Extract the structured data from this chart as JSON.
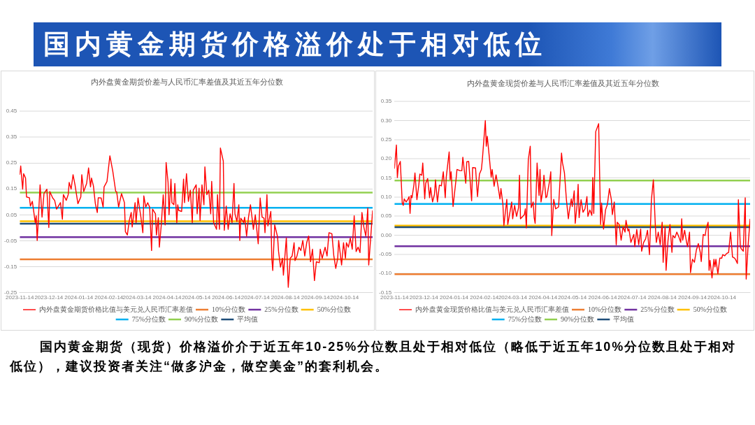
{
  "chart_data": [
    {
      "type": "other",
      "title": "国内黄金期货价格溢价处于相对低位"
    },
    {
      "type": "line",
      "title": "内外盘黄金期货价差与人民币汇率差值及其近五年分位数",
      "xlim": [
        "2023-11-14",
        "2024-11-12"
      ],
      "xticks": [
        "2023-11-14",
        "2023-12-14",
        "2024-01-14",
        "2024-02-14",
        "2024-03-14",
        "2024-04-14",
        "2024-05-14",
        "2024-06-14",
        "2024-07-14",
        "2024-08-14",
        "2024-09-14",
        "2024-10-14"
      ],
      "ylim": [
        -0.25,
        0.45
      ],
      "yticks": [
        -0.25,
        -0.15,
        -0.05,
        0.05,
        0.15,
        0.25,
        0.35,
        0.45
      ],
      "grid": "y",
      "legend": "bottom",
      "line_style": "solid",
      "series": [
        {
          "name": "内外盘黄金期货价格比值与美元兑人民币汇率差值",
          "color": "#ff0000",
          "x": [
            "2023-11-14",
            "2023-11-15",
            "2023-11-17",
            "2023-11-18",
            "2023-11-20",
            "2023-11-21",
            "2023-11-24",
            "2023-11-25",
            "2023-11-27",
            "2023-11-30",
            "2023-12-01",
            "2023-12-02",
            "2023-12-03",
            "2023-12-05",
            "2023-12-07",
            "2023-12-09",
            "2023-12-12",
            "2023-12-14",
            "2023-12-15",
            "2023-12-18",
            "2023-12-20",
            "2023-12-22",
            "2023-12-26",
            "2023-12-28",
            "2023-12-29",
            "2024-01-01",
            "2024-01-03",
            "2024-01-04",
            "2024-01-06",
            "2024-01-08",
            "2024-01-10",
            "2024-01-13",
            "2024-01-16",
            "2024-01-17",
            "2024-01-19",
            "2024-01-22",
            "2024-01-24",
            "2024-01-26",
            "2024-01-27",
            "2024-01-29",
            "2024-01-31",
            "2024-02-02",
            "2024-02-03",
            "2024-02-06",
            "2024-02-08",
            "2024-02-09",
            "2024-02-12",
            "2024-02-15",
            "2024-02-18",
            "2024-02-21",
            "2024-02-22",
            "2024-02-24",
            "2024-02-27",
            "2024-03-01",
            "2024-03-02",
            "2024-03-04",
            "2024-03-06",
            "2024-03-08",
            "2024-03-09",
            "2024-03-12",
            "2024-03-13",
            "2024-03-15",
            "2024-03-18",
            "2024-03-20",
            "2024-03-21",
            "2024-03-23",
            "2024-03-25",
            "2024-03-27",
            "2024-03-29",
            "2024-03-30",
            "2024-04-02",
            "2024-04-03",
            "2024-04-05",
            "2024-04-06",
            "2024-04-08",
            "2024-04-10",
            "2024-04-12",
            "2024-04-13",
            "2024-04-15",
            "2024-04-16",
            "2024-04-18",
            "2024-04-19",
            "2024-04-21",
            "2024-04-22",
            "2024-04-24",
            "2024-04-25",
            "2024-04-26",
            "2024-04-29",
            "2024-05-01",
            "2024-05-02",
            "2024-05-04",
            "2024-05-06",
            "2024-05-08",
            "2024-05-10",
            "2024-05-11",
            "2024-05-14",
            "2024-05-15",
            "2024-05-17",
            "2024-05-18",
            "2024-05-20",
            "2024-05-22",
            "2024-05-23",
            "2024-05-25",
            "2024-05-27",
            "2024-05-29",
            "2024-05-30",
            "2024-06-01",
            "2024-06-04",
            "2024-06-05",
            "2024-06-07",
            "2024-06-08",
            "2024-06-11",
            "2024-06-12",
            "2024-06-14",
            "2024-06-16",
            "2024-06-18",
            "2024-06-20",
            "2024-06-22",
            "2024-06-23",
            "2024-06-25",
            "2024-06-27",
            "2024-06-28",
            "2024-06-29",
            "2024-07-02",
            "2024-07-03",
            "2024-07-05",
            "2024-07-07",
            "2024-07-09",
            "2024-07-11",
            "2024-07-12",
            "2024-07-14",
            "2024-07-17",
            "2024-07-19",
            "2024-07-21",
            "2024-07-23",
            "2024-07-24",
            "2024-07-26",
            "2024-07-27",
            "2024-07-30",
            "2024-07-31",
            "2024-08-01",
            "2024-08-03",
            "2024-08-06",
            "2024-08-07",
            "2024-08-09",
            "2024-08-11",
            "2024-08-12",
            "2024-08-15",
            "2024-08-17",
            "2024-08-19",
            "2024-08-21",
            "2024-08-23",
            "2024-08-24",
            "2024-08-26",
            "2024-08-28",
            "2024-08-30",
            "2024-09-01",
            "2024-09-03",
            "2024-09-05",
            "2024-09-07",
            "2024-09-09",
            "2024-09-11",
            "2024-09-13",
            "2024-09-15",
            "2024-09-18",
            "2024-09-19",
            "2024-09-21",
            "2024-09-24",
            "2024-09-26",
            "2024-09-28",
            "2024-10-01",
            "2024-10-03",
            "2024-10-05",
            "2024-10-07",
            "2024-10-08",
            "2024-10-11",
            "2024-10-13",
            "2024-10-15",
            "2024-10-16",
            "2024-10-18",
            "2024-10-20",
            "2024-10-22",
            "2024-10-24",
            "2024-10-26",
            "2024-10-28",
            "2024-10-30",
            "2024-11-01",
            "2024-11-03",
            "2024-11-05",
            "2024-11-07",
            "2024-11-08",
            "2024-11-10",
            "2024-11-12"
          ],
          "values": [
            0.205,
            0.239,
            0.149,
            0.209,
            0.192,
            0.119,
            0.116,
            0.084,
            0.102,
            0.02,
            0.046,
            -0.049,
            0.02,
            0.166,
            0.041,
            0.132,
            0.149,
            0.001,
            0.14,
            0.115,
            0.106,
            0.072,
            0.097,
            0.033,
            0.128,
            0.106,
            0.128,
            0.175,
            0.149,
            0.205,
            0.166,
            0.093,
            0.119,
            0.205,
            0.14,
            0.171,
            0.231,
            0.158,
            0.192,
            0.162,
            0.093,
            0.059,
            0.116,
            0.115,
            0.08,
            0.158,
            0.179,
            0.278,
            0.218,
            0.14,
            0.139,
            0.08,
            0.132,
            0.097,
            -0.015,
            -0.028,
            0.028,
            0.059,
            0.003,
            0.097,
            0.02,
            0.115,
            0.041,
            -0.019,
            0.123,
            0.08,
            0.097,
            0.08,
            -0.088,
            0.072,
            0.054,
            -0.028,
            0.039,
            -0.075,
            0.011,
            0.127,
            0.011,
            0.252,
            0.175,
            0.05,
            0.188,
            0.097,
            0.089,
            0.171,
            0.02,
            0.089,
            0.067,
            0.063,
            0.188,
            0.097,
            0.209,
            0.102,
            0.145,
            0.02,
            0.145,
            0.166,
            0.054,
            0.153,
            0.028,
            0.166,
            0.089,
            0.235,
            0.128,
            0.145,
            0.054,
            0.179,
            0.02,
            -0.006,
            0.128,
            -0.006,
            0.308,
            0.257,
            -0.01,
            0.084,
            -0.006,
            0.054,
            0.02,
            0.171,
            0.054,
            0.024,
            0.089,
            -0.049,
            0.037,
            0.02,
            0.041,
            -0.032,
            0.041,
            0.089,
            0.028,
            -0.006,
            0.05,
            -0.062,
            0.115,
            0.041,
            0.037,
            -0.019,
            0.128,
            0.007,
            0.063,
            -0.118,
            -0.165,
            0.011,
            -0.036,
            -0.092,
            -0.152,
            -0.118,
            -0.183,
            -0.04,
            -0.23,
            -0.118,
            -0.109,
            -0.058,
            -0.127,
            -0.109,
            -0.075,
            -0.088,
            -0.049,
            -0.109,
            -0.058,
            -0.032,
            -0.131,
            -0.083,
            -0.204,
            -0.131,
            -0.135,
            -0.083,
            -0.118,
            -0.075,
            -0.109,
            -0.019,
            -0.023,
            -0.109,
            -0.157,
            -0.118,
            -0.049,
            -0.144,
            -0.058,
            -0.118,
            -0.058,
            -0.075,
            -0.04,
            -0.083,
            0.046,
            -0.092,
            -0.075,
            -0.096,
            0.059,
            0.002,
            -0.032,
            0.076,
            -0.144,
            -0.04,
            0.067
          ]
        },
        {
          "name": "10%分位数",
          "color": "#ed7d31",
          "x": [
            "2023-11-14",
            "2024-11-12"
          ],
          "values": [
            -0.122,
            -0.122
          ]
        },
        {
          "name": "25%分位数",
          "color": "#7030a0",
          "x": [
            "2023-11-14",
            "2024-11-12"
          ],
          "values": [
            -0.036,
            -0.036
          ]
        },
        {
          "name": "50%分位数",
          "color": "#ffc000",
          "x": [
            "2023-11-14",
            "2024-11-12"
          ],
          "values": [
            0.025,
            0.025
          ]
        },
        {
          "name": "75%分位数",
          "color": "#00b0f0",
          "x": [
            "2023-11-14",
            "2024-11-12"
          ],
          "values": [
            0.077,
            0.077
          ]
        },
        {
          "name": "90%分位数",
          "color": "#92d050",
          "x": [
            "2023-11-14",
            "2024-11-12"
          ],
          "values": [
            0.136,
            0.136
          ]
        },
        {
          "name": "平均值",
          "color": "#1f4e79",
          "x": [
            "2023-11-14",
            "2024-11-12"
          ],
          "values": [
            0.016,
            0.016
          ]
        }
      ]
    },
    {
      "type": "line",
      "title": "内外盘黄金现货价差与人民币汇率差值及其近五年分位数",
      "xlim": [
        "2023-11-14",
        "2024-11-12"
      ],
      "xticks": [
        "2023-11-14",
        "2023-12-14",
        "2024-01-14",
        "2024-02-14",
        "2024-03-14",
        "2024-04-14",
        "2024-05-14",
        "2024-06-14",
        "2024-07-14",
        "2024-08-14",
        "2024-09-14",
        "2024-10-14"
      ],
      "ylim": [
        -0.15,
        0.35
      ],
      "yticks": [
        -0.15,
        {
          "value": -0.1,
          "label": "-0.10"
        },
        -0.05,
        {
          "value": 0,
          "label": "0.00"
        },
        0.05,
        {
          "value": 0.1,
          "label": "0.10"
        },
        0.15,
        {
          "value": 0.2,
          "label": "0.20"
        },
        0.25,
        {
          "value": 0.3,
          "label": "0.30"
        },
        0.35
      ],
      "grid": "y",
      "legend": "bottom",
      "line_style": "solid",
      "series": [
        {
          "name": "内外盘黄金现货价格比值与美元兑人民币汇率差值",
          "color": "#ff0000",
          "x": [
            "2023-11-14",
            "2023-11-16",
            "2023-11-17",
            "2023-11-18",
            "2023-11-20",
            "2023-11-22",
            "2023-11-23",
            "2023-11-24",
            "2023-11-26",
            "2023-11-28",
            "2023-11-29",
            "2023-11-30",
            "2023-12-01",
            "2023-12-02",
            "2023-12-04",
            "2023-12-05",
            "2023-12-07",
            "2023-12-09",
            "2023-12-10",
            "2023-12-12",
            "2023-12-13",
            "2023-12-15",
            "2023-12-16",
            "2023-12-18",
            "2023-12-20",
            "2023-12-21",
            "2023-12-23",
            "2023-12-25",
            "2023-12-26",
            "2023-12-28",
            "2023-12-30",
            "2024-01-01",
            "2024-01-03",
            "2024-01-05",
            "2024-01-06",
            "2024-01-09",
            "2024-01-10",
            "2024-01-11",
            "2024-01-13",
            "2024-01-16",
            "2024-01-17",
            "2024-01-20",
            "2024-01-22",
            "2024-01-23",
            "2024-01-26",
            "2024-01-27",
            "2024-01-29",
            "2024-02-01",
            "2024-02-02",
            "2024-02-05",
            "2024-02-07",
            "2024-02-09",
            "2024-02-11",
            "2024-02-12",
            "2024-02-15",
            "2024-02-16",
            "2024-02-17",
            "2024-02-19",
            "2024-02-21",
            "2024-02-22",
            "2024-02-24",
            "2024-02-26",
            "2024-02-28",
            "2024-03-01",
            "2024-03-02",
            "2024-03-04",
            "2024-03-05",
            "2024-03-08",
            "2024-03-09",
            "2024-03-11",
            "2024-03-13",
            "2024-03-14",
            "2024-03-16",
            "2024-03-18",
            "2024-03-20",
            "2024-03-21",
            "2024-03-22",
            "2024-03-26",
            "2024-03-27",
            "2024-03-28",
            "2024-03-30",
            "2024-04-01",
            "2024-04-02",
            "2024-04-04",
            "2024-04-05",
            "2024-04-06",
            "2024-04-08",
            "2024-04-10",
            "2024-04-11",
            "2024-04-12",
            "2024-04-14",
            "2024-04-15",
            "2024-04-17",
            "2024-04-18",
            "2024-04-21",
            "2024-04-22",
            "2024-04-23",
            "2024-04-25",
            "2024-04-27",
            "2024-04-30",
            "2024-05-03",
            "2024-05-04",
            "2024-05-06",
            "2024-05-08",
            "2024-05-10",
            "2024-05-11",
            "2024-05-13",
            "2024-05-14",
            "2024-05-16",
            "2024-05-17",
            "2024-05-19",
            "2024-05-20",
            "2024-05-21",
            "2024-05-23",
            "2024-05-25",
            "2024-05-27",
            "2024-05-29",
            "2024-05-30",
            "2024-06-01",
            "2024-06-03",
            "2024-06-04",
            "2024-06-05",
            "2024-06-07",
            "2024-06-10",
            "2024-06-12",
            "2024-06-13",
            "2024-06-15",
            "2024-06-17",
            "2024-06-19",
            "2024-06-21",
            "2024-06-23",
            "2024-06-24",
            "2024-06-26",
            "2024-06-28",
            "2024-06-29",
            "2024-07-01",
            "2024-07-03",
            "2024-07-05",
            "2024-07-07",
            "2024-07-08",
            "2024-07-10",
            "2024-07-11",
            "2024-07-13",
            "2024-07-16",
            "2024-07-17",
            "2024-07-19",
            "2024-07-21",
            "2024-07-23",
            "2024-07-24",
            "2024-07-26",
            "2024-07-28",
            "2024-07-30",
            "2024-08-01",
            "2024-08-03",
            "2024-08-05",
            "2024-08-07",
            "2024-08-08",
            "2024-08-10",
            "2024-08-12",
            "2024-08-14",
            "2024-08-15",
            "2024-08-17",
            "2024-08-18",
            "2024-08-20",
            "2024-08-22",
            "2024-08-24",
            "2024-08-25",
            "2024-08-27",
            "2024-08-29",
            "2024-08-31",
            "2024-09-02",
            "2024-09-03",
            "2024-09-04",
            "2024-09-06",
            "2024-09-08",
            "2024-09-09",
            "2024-09-11",
            "2024-09-12",
            "2024-09-14",
            "2024-09-16",
            "2024-09-18",
            "2024-09-20",
            "2024-09-22",
            "2024-09-23",
            "2024-09-25",
            "2024-09-27",
            "2024-09-28",
            "2024-09-30",
            "2024-10-01",
            "2024-10-02",
            "2024-10-04",
            "2024-10-06",
            "2024-10-07",
            "2024-10-08",
            "2024-10-10",
            "2024-10-12",
            "2024-10-14",
            "2024-10-15",
            "2024-10-17",
            "2024-10-19",
            "2024-10-21",
            "2024-10-23",
            "2024-10-25",
            "2024-10-27",
            "2024-10-28",
            "2024-10-30",
            "2024-10-31",
            "2024-11-02",
            "2024-11-03",
            "2024-11-05",
            "2024-11-07",
            "2024-11-08",
            "2024-11-10",
            "2024-11-12"
          ],
          "values": [
            0.174,
            0.236,
            0.151,
            0.18,
            0.193,
            0.084,
            0.078,
            0.095,
            0.087,
            0.095,
            0.101,
            0.057,
            0.104,
            0.098,
            0.133,
            0.163,
            0.093,
            0.133,
            0.16,
            0.157,
            0.189,
            0.095,
            0.136,
            0.148,
            0.098,
            0.125,
            0.087,
            0.107,
            0.145,
            0.087,
            0.131,
            0.129,
            0.166,
            0.098,
            0.151,
            0.218,
            0.145,
            0.166,
            0.075,
            0.145,
            0.172,
            0.169,
            0.169,
            0.204,
            0.136,
            0.192,
            0.193,
            0.09,
            0.177,
            0.176,
            0.101,
            0.16,
            0.172,
            0.198,
            0.3,
            0.233,
            0.259,
            0.207,
            0.152,
            0.172,
            0.128,
            0.158,
            0.128,
            0.095,
            0.122,
            0.081,
            0.025,
            0.094,
            0.028,
            0.057,
            0.087,
            0.043,
            0.078,
            0.049,
            0.072,
            0.157,
            0.043,
            0.054,
            0.069,
            0.019,
            0.198,
            0.233,
            0.072,
            0.087,
            0.046,
            0.031,
            0.189,
            0.104,
            0.172,
            0.087,
            0.119,
            0.157,
            0.098,
            0.101,
            0.145,
            0.166,
            -0.001,
            0.094,
            0.069,
            0.074,
            0.215,
            0.189,
            0.163,
            0.093,
            0.043,
            0.063,
            0.095,
            0.075,
            0.116,
            0.031,
            0.081,
            0.133,
            0.046,
            0.093,
            0.06,
            0.069,
            0.101,
            0.049,
            0.066,
            0.052,
            0.151,
            0.057,
            0.271,
            0.292,
            0.028,
            0.084,
            0.016,
            0.066,
            0.081,
            0.122,
            0.093,
            0.054,
            0.087,
            -0.025,
            0.034,
            0.028,
            -0.013,
            0.022,
            0.008,
            0.039,
            0.011,
            0.016,
            -0.019,
            0.002,
            -0.03,
            0.015,
            -0.025,
            0.016,
            -0.042,
            -0.019,
            -0.01,
            0.013,
            -0.051,
            0.093,
            0.145,
            0.025,
            -0.019,
            0.008,
            -0.025,
            0.034,
            -0.071,
            0.022,
            -0.092,
            -0.013,
            0.028,
            -0.045,
            -0.001,
            -0.007,
            0.008,
            -0.004,
            -0.019,
            0.043,
            -0.013,
            0.013,
            -0.019,
            -0.03,
            0.008,
            -0.098,
            -0.063,
            -0.071,
            -0.039,
            -0.022,
            -0.045,
            -0.069,
            0.002,
            -0.001,
            0.016,
            0.034,
            -0.092,
            -0.066,
            -0.112,
            -0.063,
            -0.083,
            -0.063,
            -0.101,
            -0.06,
            -0.06,
            -0.051,
            -0.054,
            -0.048,
            -0.045,
            0.008,
            -0.057,
            -0.06,
            -0.063,
            -0.074,
            0.093,
            -0.03,
            -0.036,
            -0.042,
            0.098,
            -0.115,
            -0.025,
            0.043
          ]
        },
        {
          "name": "10%分位数",
          "color": "#ed7d31",
          "x": [
            "2023-11-14",
            "2024-11-12"
          ],
          "values": [
            -0.102,
            -0.102
          ]
        },
        {
          "name": "25%分位数",
          "color": "#7030a0",
          "x": [
            "2023-11-14",
            "2024-11-12"
          ],
          "values": [
            -0.029,
            -0.029
          ]
        },
        {
          "name": "50%分位数",
          "color": "#ffc000",
          "x": [
            "2023-11-14",
            "2024-11-12"
          ],
          "values": [
            0.025,
            0.025
          ]
        },
        {
          "name": "75%分位数",
          "color": "#00b0f0",
          "x": [
            "2023-11-14",
            "2024-11-12"
          ],
          "values": [
            0.082,
            0.082
          ]
        },
        {
          "name": "90%分位数",
          "color": "#92d050",
          "x": [
            "2023-11-14",
            "2024-11-12"
          ],
          "values": [
            0.143,
            0.143
          ]
        },
        {
          "name": "平均值",
          "color": "#1f4e79",
          "x": [
            "2023-11-14",
            "2024-11-12"
          ],
          "values": [
            0.021,
            0.021
          ]
        }
      ]
    },
    {
      "type": "other",
      "annotations": [
        "国内黄金期货（现货）价格溢价介于近五年10-25%分位数且处于相对低位（略低于近五年10%分位数且处于相对低位），建议投资者关注“做多沪金，做空美金”的套利机会。"
      ]
    }
  ]
}
